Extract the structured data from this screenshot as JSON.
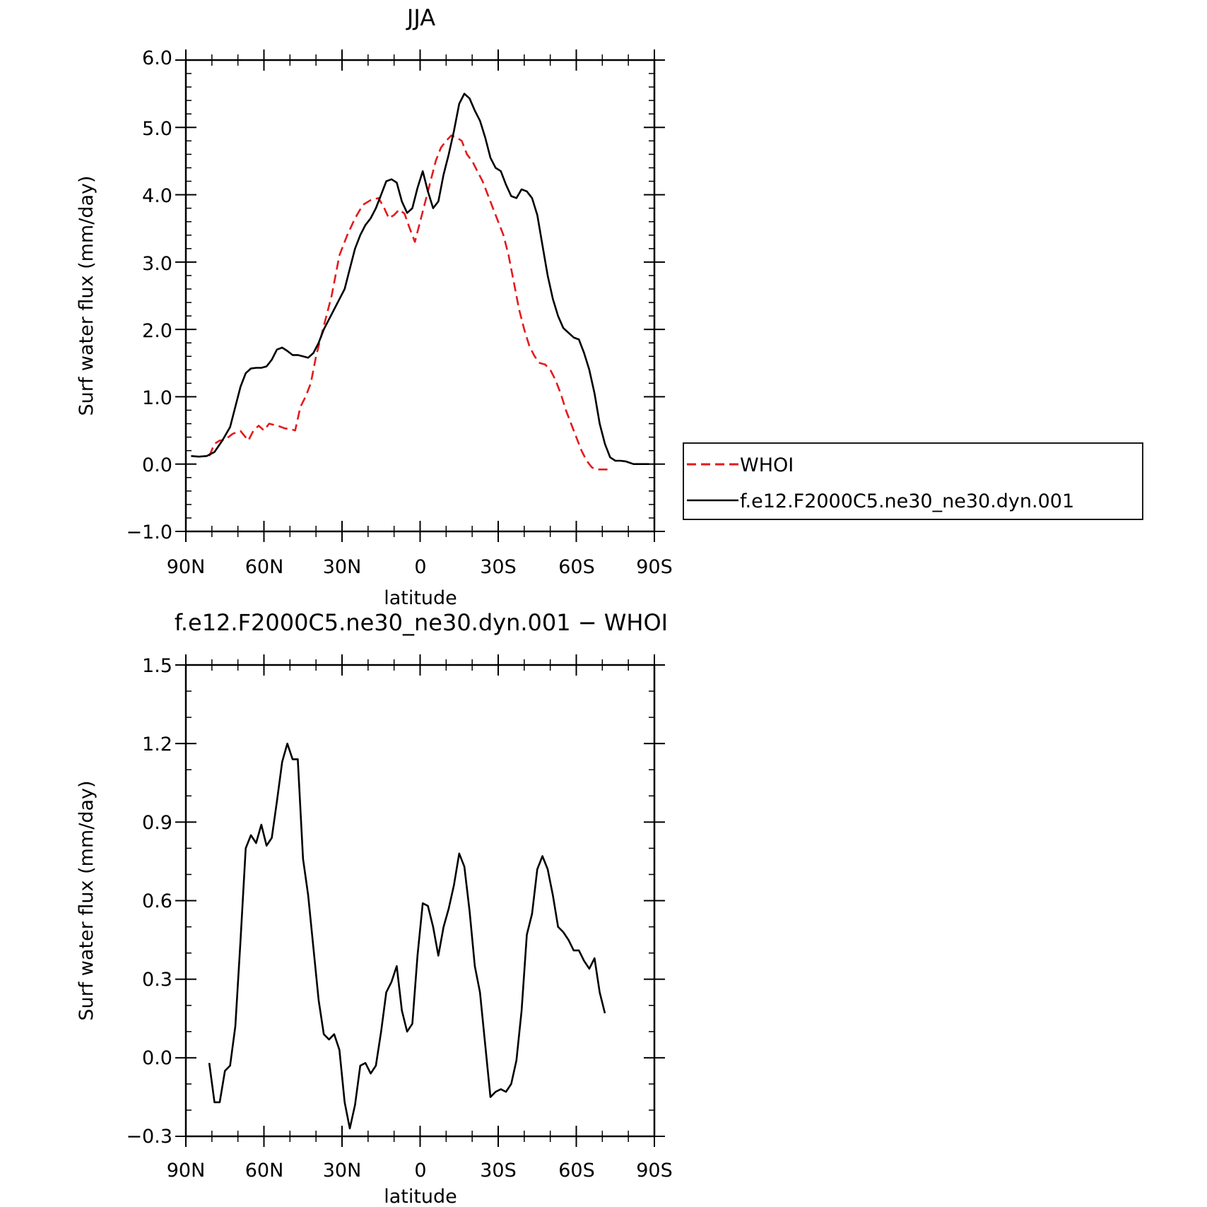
{
  "chart_data": [
    {
      "type": "line",
      "title": "JJA",
      "xlabel": "latitude",
      "ylabel": "Surf water flux (mm/day)",
      "xlim": [
        90,
        -90
      ],
      "ylim": [
        -1.0,
        6.0
      ],
      "x_ticks": [
        90,
        60,
        30,
        0,
        -30,
        -60,
        -90
      ],
      "x_tick_labels": [
        "90N",
        "60N",
        "30N",
        "0",
        "30S",
        "60S",
        "90S"
      ],
      "y_ticks": [
        -1.0,
        0.0,
        1.0,
        2.0,
        3.0,
        4.0,
        5.0,
        6.0
      ],
      "y_tick_labels": [
        "-1.0",
        "0.0",
        "1.0",
        "2.0",
        "3.0",
        "4.0",
        "5.0",
        "6.0"
      ],
      "legend_position": "right",
      "series": [
        {
          "name": "WHOI",
          "color": "#e41a1c",
          "dash": "dashed",
          "x": [
            81,
            79,
            77,
            75,
            72,
            69,
            66,
            64,
            62,
            60,
            58,
            56,
            54,
            52,
            50,
            48,
            46,
            44,
            42,
            40,
            38,
            36,
            34,
            31,
            28,
            25,
            22,
            19,
            16,
            14,
            12,
            10,
            8,
            6,
            4,
            2,
            0,
            -2,
            -4,
            -6,
            -8,
            -10,
            -12,
            -14,
            -16,
            -18,
            -20,
            -22,
            -24,
            -26,
            -28,
            -30,
            -32,
            -34,
            -36,
            -38,
            -40,
            -42,
            -44,
            -46,
            -48,
            -50,
            -52,
            -54,
            -56,
            -58,
            -60,
            -62,
            -64,
            -66,
            -68,
            -70,
            -72
          ],
          "y": [
            0.12,
            0.3,
            0.35,
            0.36,
            0.45,
            0.49,
            0.35,
            0.5,
            0.57,
            0.5,
            0.6,
            0.58,
            0.56,
            0.53,
            0.52,
            0.5,
            0.85,
            1.0,
            1.2,
            1.6,
            1.9,
            2.2,
            2.5,
            3.1,
            3.4,
            3.65,
            3.85,
            3.92,
            3.95,
            3.82,
            3.65,
            3.7,
            3.78,
            3.72,
            3.5,
            3.3,
            3.6,
            3.9,
            4.2,
            4.5,
            4.7,
            4.8,
            4.88,
            4.85,
            4.8,
            4.6,
            4.5,
            4.35,
            4.2,
            4.0,
            3.8,
            3.6,
            3.4,
            3.1,
            2.7,
            2.3,
            2.0,
            1.75,
            1.6,
            1.5,
            1.48,
            1.4,
            1.25,
            1.05,
            0.8,
            0.6,
            0.4,
            0.2,
            0.05,
            -0.05,
            -0.08,
            -0.08,
            -0.08
          ]
        },
        {
          "name": "f.e12.F2000C5.ne30_ne30.dyn.001",
          "color": "#000000",
          "dash": "solid",
          "x": [
            88,
            85,
            82,
            79,
            76,
            73,
            71,
            69,
            67,
            65,
            63,
            61,
            59,
            57,
            55,
            53,
            51,
            49,
            47,
            45,
            43,
            41,
            39,
            37,
            35,
            33,
            31,
            29,
            27,
            25,
            23,
            21,
            19,
            17,
            15,
            13,
            11,
            9,
            7,
            5,
            3,
            1,
            -1,
            -3,
            -5,
            -7,
            -9,
            -11,
            -13,
            -15,
            -17,
            -19,
            -21,
            -23,
            -25,
            -27,
            -29,
            -31,
            -33,
            -35,
            -37,
            -39,
            -41,
            -43,
            -45,
            -47,
            -49,
            -51,
            -53,
            -55,
            -57,
            -59,
            -61,
            -63,
            -65,
            -67,
            -69,
            -71,
            -73,
            -75,
            -77,
            -79,
            -82,
            -85,
            -88
          ],
          "y": [
            0.12,
            0.11,
            0.12,
            0.18,
            0.35,
            0.55,
            0.85,
            1.15,
            1.35,
            1.42,
            1.43,
            1.43,
            1.45,
            1.55,
            1.7,
            1.73,
            1.68,
            1.62,
            1.62,
            1.6,
            1.58,
            1.65,
            1.8,
            2.0,
            2.15,
            2.3,
            2.45,
            2.6,
            2.9,
            3.2,
            3.4,
            3.55,
            3.65,
            3.8,
            4.0,
            4.2,
            4.23,
            4.18,
            3.9,
            3.73,
            3.8,
            4.1,
            4.35,
            4.05,
            3.8,
            3.9,
            4.3,
            4.6,
            4.95,
            5.35,
            5.5,
            5.43,
            5.25,
            5.1,
            4.85,
            4.55,
            4.4,
            4.35,
            4.15,
            3.98,
            3.95,
            4.08,
            4.05,
            3.95,
            3.7,
            3.25,
            2.8,
            2.45,
            2.2,
            2.02,
            1.95,
            1.88,
            1.85,
            1.65,
            1.4,
            1.05,
            0.6,
            0.3,
            0.1,
            0.05,
            0.05,
            0.04,
            0.0,
            0.0,
            0.0
          ]
        }
      ]
    },
    {
      "type": "line",
      "title": "f.e12.F2000C5.ne30_ne30.dyn.001 - WHOI",
      "xlabel": "latitude",
      "ylabel": "Surf water flux (mm/day)",
      "xlim": [
        90,
        -90
      ],
      "ylim": [
        -0.3,
        1.5
      ],
      "x_ticks": [
        90,
        60,
        30,
        0,
        -30,
        -60,
        -90
      ],
      "x_tick_labels": [
        "90N",
        "60N",
        "30N",
        "0",
        "30S",
        "60S",
        "90S"
      ],
      "y_ticks": [
        -0.3,
        0.0,
        0.3,
        0.6,
        0.9,
        1.2,
        1.5
      ],
      "y_tick_labels": [
        "-0.3",
        "0.0",
        "0.3",
        "0.6",
        "0.9",
        "1.2",
        "1.5"
      ],
      "series": [
        {
          "color": "#000000",
          "dash": "solid",
          "x": [
            81,
            79,
            77,
            75,
            73,
            71,
            69,
            67,
            65,
            63,
            61,
            59,
            57,
            55,
            53,
            51,
            49,
            47,
            45,
            43,
            41,
            39,
            37,
            35,
            33,
            31,
            29,
            27,
            25,
            23,
            21,
            19,
            17,
            15,
            13,
            11,
            9,
            7,
            5,
            3,
            1,
            -1,
            -3,
            -5,
            -7,
            -9,
            -11,
            -13,
            -15,
            -17,
            -19,
            -21,
            -23,
            -25,
            -27,
            -29,
            -31,
            -33,
            -35,
            -37,
            -39,
            -41,
            -43,
            -45,
            -47,
            -49,
            -51,
            -53,
            -55,
            -57,
            -59,
            -61,
            -63,
            -65,
            -67,
            -69,
            -71
          ],
          "y": [
            -0.02,
            -0.17,
            -0.17,
            -0.05,
            -0.03,
            0.12,
            0.45,
            0.8,
            0.85,
            0.82,
            0.89,
            0.81,
            0.84,
            0.98,
            1.13,
            1.2,
            1.14,
            1.14,
            0.76,
            0.62,
            0.42,
            0.22,
            0.09,
            0.07,
            0.09,
            0.03,
            -0.17,
            -0.27,
            -0.18,
            -0.03,
            -0.02,
            -0.06,
            -0.03,
            0.1,
            0.25,
            0.29,
            0.35,
            0.18,
            0.1,
            0.13,
            0.39,
            0.59,
            0.58,
            0.5,
            0.39,
            0.5,
            0.57,
            0.66,
            0.78,
            0.73,
            0.56,
            0.35,
            0.25,
            0.05,
            -0.15,
            -0.13,
            -0.12,
            -0.13,
            -0.1,
            -0.01,
            0.18,
            0.47,
            0.55,
            0.72,
            0.77,
            0.72,
            0.62,
            0.5,
            0.48,
            0.45,
            0.41,
            0.41,
            0.37,
            0.34,
            0.38,
            0.25,
            0.17
          ]
        }
      ]
    }
  ]
}
